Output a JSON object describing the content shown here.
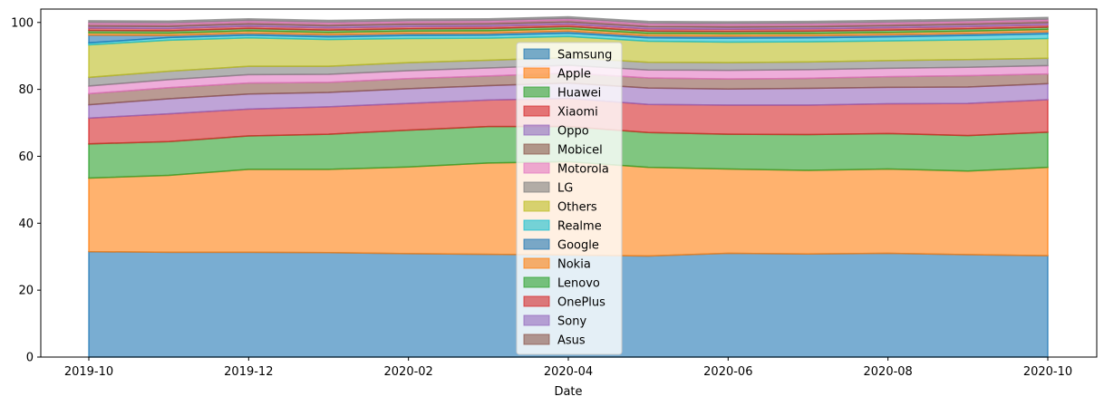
{
  "chart_data": {
    "type": "area",
    "stacked": true,
    "title": "",
    "xlabel": "Date",
    "ylabel": "",
    "ylim": [
      0,
      104
    ],
    "yticks": [
      0,
      20,
      40,
      60,
      80,
      100
    ],
    "x": [
      "2019-10",
      "2019-11",
      "2019-12",
      "2020-01",
      "2020-02",
      "2020-03",
      "2020-04",
      "2020-05",
      "2020-06",
      "2020-07",
      "2020-08",
      "2020-09",
      "2020-10"
    ],
    "xticks": [
      "2019-10",
      "2019-12",
      "2020-02",
      "2020-04",
      "2020-06",
      "2020-08",
      "2020-10"
    ],
    "grid": false,
    "legend_position": "center",
    "series": [
      {
        "name": "Samsung",
        "color": "#1f77b4",
        "values": [
          31.5,
          31.3,
          31.3,
          31.2,
          30.9,
          30.7,
          30.5,
          30.2,
          31.0,
          30.8,
          31.0,
          30.6,
          30.3
        ]
      },
      {
        "name": "Apple",
        "color": "#ff7f0e",
        "values": [
          22.0,
          23.0,
          24.8,
          24.9,
          25.9,
          27.3,
          27.9,
          26.5,
          25.2,
          25.0,
          25.2,
          25.0,
          26.4
        ]
      },
      {
        "name": "Huawei",
        "color": "#2ca02c",
        "values": [
          10.2,
          10.1,
          10.0,
          10.5,
          11.0,
          10.9,
          10.5,
          10.4,
          10.4,
          10.7,
          10.6,
          10.6,
          10.5
        ]
      },
      {
        "name": "Xiaomi",
        "color": "#d62728",
        "values": [
          7.7,
          8.3,
          8.0,
          8.2,
          8.0,
          7.9,
          8.4,
          8.4,
          8.7,
          8.8,
          8.9,
          9.6,
          9.7
        ]
      },
      {
        "name": "Oppo",
        "color": "#9467bd",
        "values": [
          4.0,
          4.5,
          4.5,
          4.3,
          4.4,
          4.3,
          4.6,
          4.9,
          4.8,
          5.0,
          4.9,
          4.9,
          4.8
        ]
      },
      {
        "name": "Mobicel",
        "color": "#8c564b",
        "values": [
          3.3,
          3.3,
          3.3,
          3.0,
          3.0,
          2.9,
          3.0,
          3.0,
          3.0,
          3.0,
          3.2,
          3.4,
          2.9
        ]
      },
      {
        "name": "Motorola",
        "color": "#e377c2",
        "values": [
          2.3,
          2.4,
          2.5,
          2.4,
          2.4,
          2.4,
          2.3,
          2.4,
          2.6,
          2.6,
          2.5,
          2.5,
          2.5
        ]
      },
      {
        "name": "LG",
        "color": "#7f7f7f",
        "values": [
          2.6,
          2.5,
          2.5,
          2.4,
          2.4,
          2.3,
          2.3,
          2.3,
          2.3,
          2.3,
          2.3,
          2.3,
          2.2
        ]
      },
      {
        "name": "Others",
        "color": "#bcbd22",
        "values": [
          9.7,
          9.3,
          8.5,
          8.0,
          7.2,
          6.6,
          6.3,
          6.3,
          6.1,
          6.0,
          5.9,
          5.9,
          5.9
        ]
      },
      {
        "name": "Realme",
        "color": "#17becf",
        "values": [
          0.6,
          0.8,
          0.8,
          0.8,
          0.9,
          0.9,
          1.0,
          1.0,
          1.2,
          1.2,
          1.2,
          1.3,
          1.4
        ]
      },
      {
        "name": "Google",
        "color": "#1f77b4",
        "values": [
          2.3,
          0.6,
          0.6,
          0.6,
          0.6,
          0.6,
          0.6,
          0.6,
          0.6,
          0.6,
          0.6,
          0.6,
          0.6
        ]
      },
      {
        "name": "Nokia",
        "color": "#ff7f0e",
        "values": [
          0.7,
          0.7,
          0.7,
          0.7,
          0.7,
          0.7,
          0.7,
          0.7,
          0.7,
          0.7,
          0.7,
          0.7,
          0.7
        ]
      },
      {
        "name": "Lenovo",
        "color": "#2ca02c",
        "values": [
          0.7,
          0.7,
          0.7,
          0.7,
          0.7,
          0.7,
          0.7,
          0.7,
          0.7,
          0.7,
          0.7,
          0.7,
          0.7
        ]
      },
      {
        "name": "OnePlus",
        "color": "#d62728",
        "values": [
          0.7,
          0.7,
          0.7,
          0.7,
          0.7,
          0.7,
          0.7,
          0.7,
          0.7,
          0.7,
          0.7,
          0.7,
          0.7
        ]
      },
      {
        "name": "Sony",
        "color": "#9467bd",
        "values": [
          0.6,
          0.6,
          0.6,
          0.6,
          0.6,
          0.6,
          0.6,
          0.6,
          0.6,
          0.6,
          0.6,
          0.6,
          0.6
        ]
      },
      {
        "name": "Asus",
        "color": "#8c564b",
        "values": [
          0.6,
          0.6,
          0.6,
          0.6,
          0.6,
          0.6,
          0.6,
          0.6,
          0.6,
          0.6,
          0.6,
          0.6,
          0.6
        ]
      },
      {
        "name": "",
        "color": "#e377c2",
        "values": [
          0.5,
          0.5,
          0.5,
          0.5,
          0.5,
          0.5,
          0.5,
          0.5,
          0.5,
          0.5,
          0.5,
          0.5,
          0.5
        ]
      },
      {
        "name": "",
        "color": "#7f7f7f",
        "values": [
          0.5,
          0.5,
          0.5,
          0.5,
          0.5,
          0.5,
          0.5,
          0.5,
          0.5,
          0.5,
          0.5,
          0.5,
          0.5
        ]
      }
    ]
  }
}
